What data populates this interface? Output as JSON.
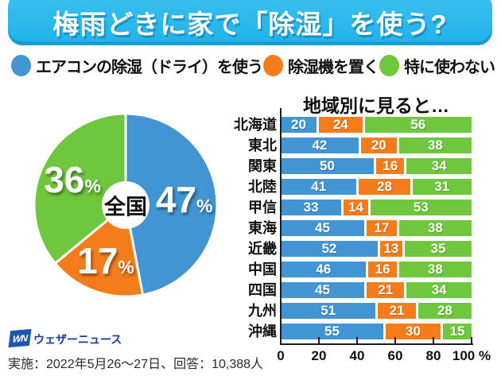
{
  "title": "梅雨どきに家で「除湿」を使う?",
  "legend": [
    {
      "label": "エアコンの除湿（ドライ）を使う",
      "color": "#4295d2"
    },
    {
      "label": "除湿機を置く",
      "color": "#f57c1b"
    },
    {
      "label": "特に使わない",
      "color": "#6ec73c"
    }
  ],
  "chart_data": [
    {
      "type": "pie",
      "title": "全国",
      "labels": [
        "エアコンの除湿（ドライ）を使う",
        "除湿機を置く",
        "特に使わない"
      ],
      "values": [
        47,
        17,
        36
      ],
      "unit": "%",
      "colors": [
        "#4295d2",
        "#f57c1b",
        "#6ec73c"
      ],
      "start_angle": "top",
      "direction": "clockwise",
      "donut": true
    },
    {
      "type": "bar",
      "orientation": "horizontal-stacked",
      "title": "地域別に見ると…",
      "categories": [
        "北海道",
        "東北",
        "関東",
        "北陸",
        "甲信",
        "東海",
        "近畿",
        "中国",
        "四国",
        "九州",
        "沖縄"
      ],
      "series": [
        {
          "name": "エアコンの除湿（ドライ）を使う",
          "color": "#4295d2",
          "values": [
            20,
            42,
            50,
            41,
            33,
            45,
            52,
            46,
            45,
            51,
            55
          ]
        },
        {
          "name": "除湿機を置く",
          "color": "#f57c1b",
          "values": [
            24,
            20,
            16,
            28,
            14,
            17,
            13,
            16,
            21,
            21,
            30
          ]
        },
        {
          "name": "特に使わない",
          "color": "#6ec73c",
          "values": [
            56,
            38,
            34,
            31,
            53,
            38,
            35,
            38,
            34,
            28,
            15
          ]
        }
      ],
      "xlim": [
        0,
        100
      ],
      "x_ticks": [
        0,
        20,
        40,
        60,
        80,
        100
      ],
      "x_suffix": "%",
      "grid": false,
      "legend_position": "top"
    }
  ],
  "footer": {
    "logo_mark": "WN",
    "logo_text": "ウェザーニュース",
    "survey_note": "実施：2022年5月26～27日、回答：10,388人"
  },
  "colors": {
    "banner": "#29b8ec",
    "blue": "#4295d2",
    "orange": "#f57c1b",
    "green": "#6ec73c"
  }
}
